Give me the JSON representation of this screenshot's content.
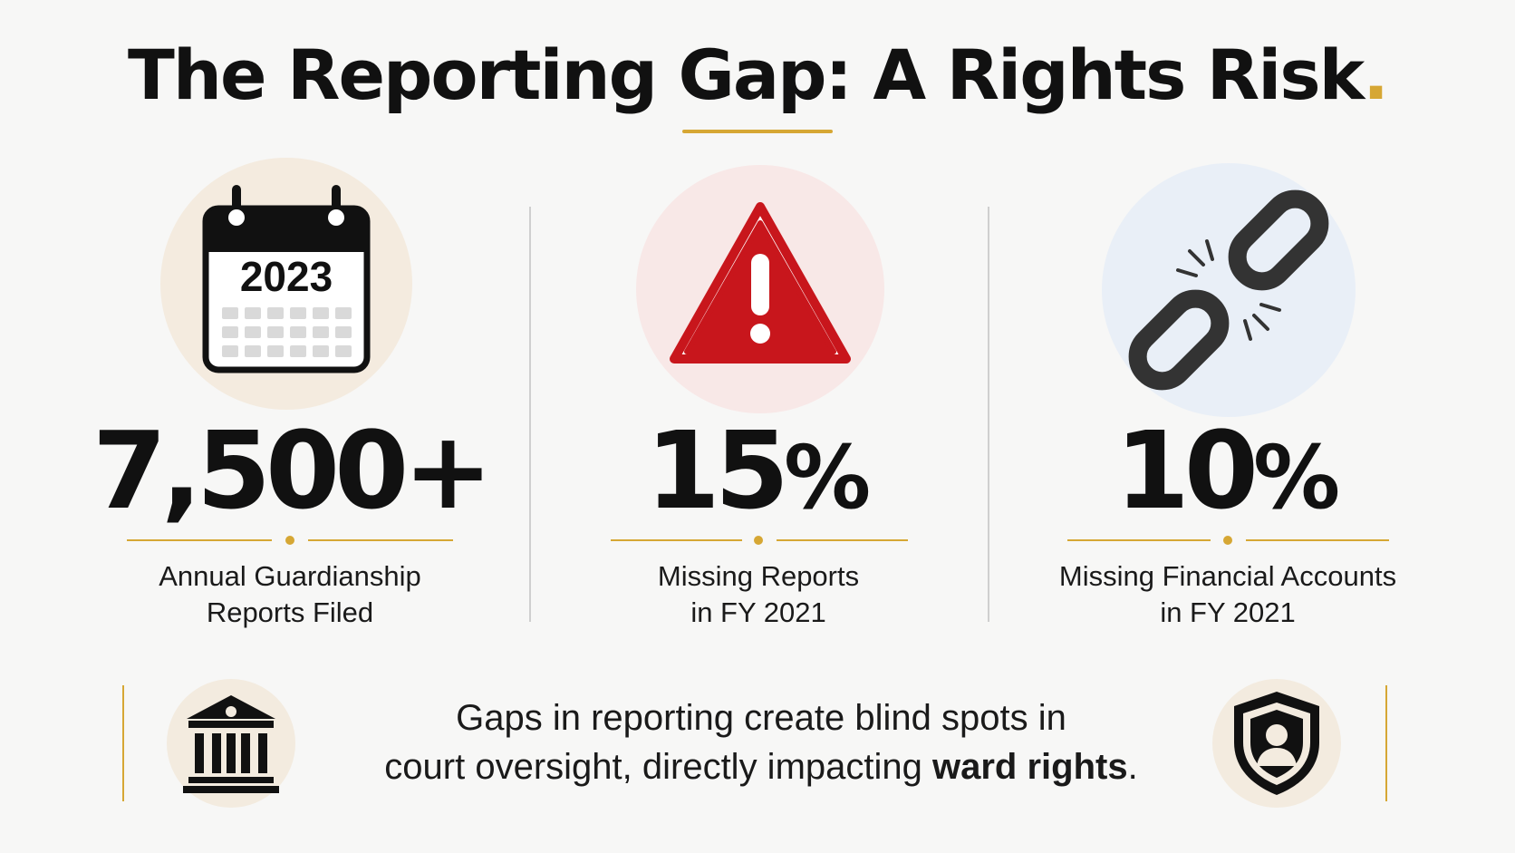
{
  "header": {
    "title": "The Reporting Gap: A Rights Risk",
    "title_period": "."
  },
  "colors": {
    "accent_gold": "#d6a734",
    "alert_red": "#c8161c",
    "text_dark": "#111111"
  },
  "stats": [
    {
      "icon": "calendar-icon",
      "icon_text": "2023",
      "value": "7,500+",
      "value_suffix": "",
      "label_line1": "Annual Guardianship",
      "label_line2": "Reports Filed"
    },
    {
      "icon": "warning-triangle-icon",
      "value": "15",
      "value_suffix": "%",
      "label_line1": "Missing Reports",
      "label_line2": "in FY 2021"
    },
    {
      "icon": "broken-chain-icon",
      "value": "10",
      "value_suffix": "%",
      "label_line1": "Missing Financial Accounts",
      "label_line2": "in FY 2021"
    }
  ],
  "footer": {
    "left_icon": "courthouse-icon",
    "right_icon": "shield-person-icon",
    "text_line1": "Gaps in reporting create blind spots in",
    "text_line2_plain": "court oversight, directly impacting ",
    "text_line2_bold": "ward rights",
    "text_line2_end": "."
  }
}
